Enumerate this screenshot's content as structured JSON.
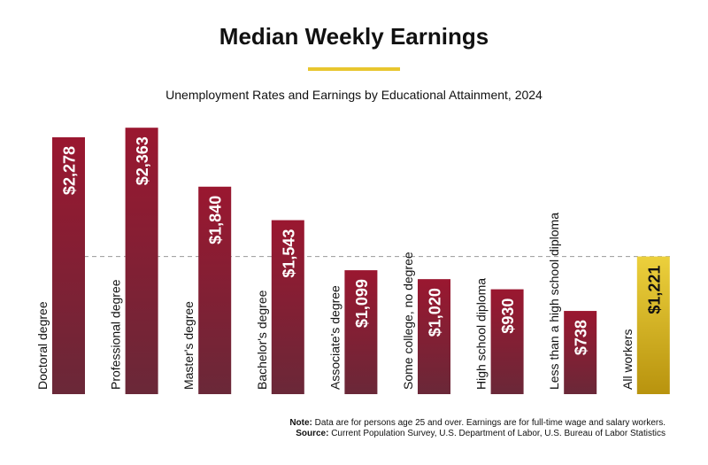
{
  "chart_data": {
    "type": "bar",
    "title": "Median Weekly Earnings",
    "subtitle": "Unemployment Rates and Earnings by Educational Attainment, 2024",
    "categories": [
      "Doctoral degree",
      "Professional degree",
      "Master's degree",
      "Bachelor's degree",
      "Associate's degree",
      "Some college, no degree",
      "High school diploma",
      "Less than a high school diploma",
      "All workers"
    ],
    "values": [
      2278,
      2363,
      1840,
      1543,
      1099,
      1020,
      930,
      738,
      1221
    ],
    "value_labels": [
      "$2,278",
      "$2,363",
      "$1,840",
      "$1,543",
      "$1,099",
      "$1,020",
      "$930",
      "$738",
      "$1,221"
    ],
    "colors": [
      "#9a1730",
      "#9a1730",
      "#9a1730",
      "#9a1730",
      "#9a1730",
      "#9a1730",
      "#9a1730",
      "#9a1730",
      "#e8c62e"
    ],
    "note_label": "Note:",
    "note": "Data are for persons age 25 and over. Earnings are for full-time wage and salary workers.",
    "source_label": "Source:",
    "source": "Current Population Survey, U.S. Department of Labor, U.S. Bureau of Labor Statistics"
  }
}
